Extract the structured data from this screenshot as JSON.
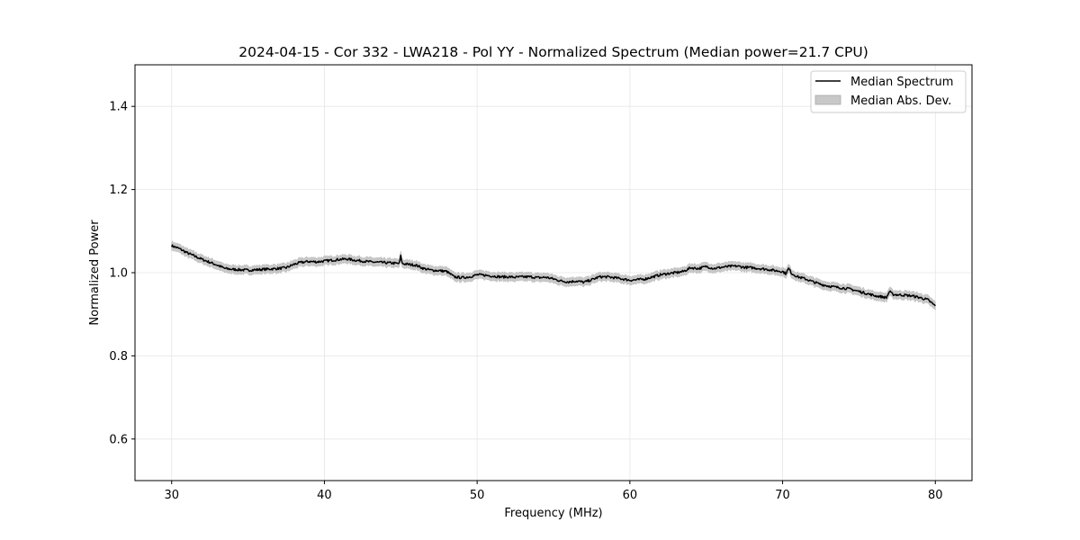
{
  "chart_data": {
    "type": "line",
    "title": "2024-04-15 - Cor 332 - LWA218 - Pol YY - Normalized Spectrum (Median power=21.7 CPU)",
    "xlabel": "Frequency (MHz)",
    "ylabel": "Normalized Power",
    "xlim": [
      27.6,
      82.4
    ],
    "ylim": [
      0.5,
      1.5
    ],
    "xticks": [
      30,
      40,
      50,
      60,
      70,
      80
    ],
    "yticks": [
      0.6,
      0.8,
      1.0,
      1.2,
      1.4
    ],
    "xtick_labels": [
      "30",
      "40",
      "50",
      "60",
      "70",
      "80"
    ],
    "ytick_labels": [
      "0.6",
      "0.8",
      "1.0",
      "1.2",
      "1.4"
    ],
    "grid": true,
    "legend_position": "top-right",
    "series": [
      {
        "name": "Median Spectrum",
        "style": "line",
        "color": "#000000",
        "x": [
          30.0,
          30.5,
          31.0,
          31.5,
          32.0,
          32.5,
          33.0,
          33.5,
          34.0,
          34.5,
          35.0,
          35.5,
          36.0,
          36.5,
          37.0,
          37.5,
          38.0,
          38.5,
          39.0,
          39.5,
          40.0,
          40.5,
          41.0,
          41.5,
          42.0,
          42.5,
          43.0,
          43.5,
          44.0,
          44.5,
          44.9,
          45.0,
          45.1,
          45.5,
          46.0,
          46.5,
          47.0,
          47.5,
          48.0,
          48.5,
          49.0,
          49.5,
          50.0,
          50.5,
          51.0,
          51.5,
          52.0,
          52.5,
          53.0,
          53.5,
          54.0,
          54.5,
          55.0,
          55.5,
          56.0,
          56.5,
          57.0,
          57.5,
          58.0,
          58.5,
          59.0,
          59.5,
          60.0,
          60.5,
          61.0,
          61.5,
          62.0,
          62.5,
          63.0,
          63.5,
          64.0,
          64.5,
          65.0,
          65.5,
          66.0,
          66.5,
          67.0,
          67.5,
          68.0,
          68.5,
          69.0,
          69.5,
          70.0,
          70.2,
          70.4,
          70.6,
          71.0,
          71.5,
          72.0,
          72.5,
          73.0,
          73.5,
          74.0,
          74.5,
          75.0,
          75.5,
          76.0,
          76.5,
          76.8,
          77.0,
          77.2,
          77.5,
          78.0,
          78.5,
          79.0,
          79.5,
          80.0
        ],
        "y": [
          1.065,
          1.058,
          1.048,
          1.04,
          1.032,
          1.025,
          1.018,
          1.01,
          1.008,
          1.007,
          1.006,
          1.007,
          1.008,
          1.009,
          1.01,
          1.012,
          1.02,
          1.025,
          1.027,
          1.026,
          1.028,
          1.03,
          1.032,
          1.033,
          1.03,
          1.028,
          1.026,
          1.025,
          1.024,
          1.023,
          1.022,
          1.04,
          1.022,
          1.02,
          1.018,
          1.01,
          1.006,
          1.005,
          1.003,
          0.99,
          0.988,
          0.99,
          0.995,
          0.994,
          0.992,
          0.99,
          0.99,
          0.989,
          0.99,
          0.99,
          0.988,
          0.989,
          0.985,
          0.98,
          0.978,
          0.98,
          0.977,
          0.983,
          0.99,
          0.99,
          0.988,
          0.985,
          0.982,
          0.983,
          0.985,
          0.99,
          0.995,
          0.998,
          1.0,
          1.003,
          1.012,
          1.01,
          1.015,
          1.01,
          1.013,
          1.015,
          1.016,
          1.013,
          1.012,
          1.01,
          1.008,
          1.005,
          1.003,
          0.998,
          1.01,
          0.998,
          0.99,
          0.985,
          0.978,
          0.972,
          0.968,
          0.965,
          0.963,
          0.96,
          0.955,
          0.95,
          0.945,
          0.942,
          0.94,
          0.955,
          0.948,
          0.947,
          0.946,
          0.944,
          0.94,
          0.935,
          0.92
        ]
      },
      {
        "name": "Median Abs. Dev.",
        "style": "band",
        "color": "#c8c8c8",
        "halfwidth": 0.01
      }
    ]
  }
}
